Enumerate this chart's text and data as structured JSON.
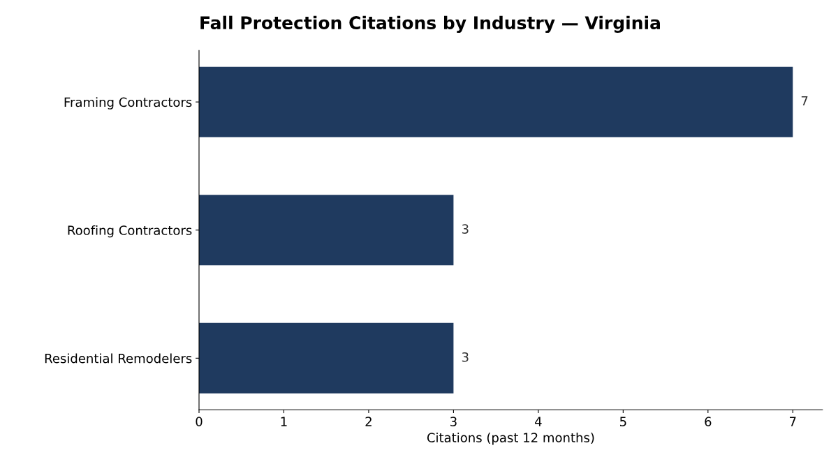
{
  "chart_data": {
    "type": "bar",
    "orientation": "horizontal",
    "title": "Fall Protection Citations by Industry — Virginia",
    "xlabel": "Citations (past 12 months)",
    "categories": [
      "Framing Contractors",
      "Roofing Contractors",
      "Residential Remodelers"
    ],
    "values": [
      7,
      3,
      3
    ],
    "color": "#1f3a5f",
    "xlim": [
      0,
      7.35
    ],
    "xticks": [
      0,
      1,
      2,
      3,
      4,
      5,
      6,
      7
    ],
    "data_labels": true,
    "grid": false,
    "legend": false
  }
}
